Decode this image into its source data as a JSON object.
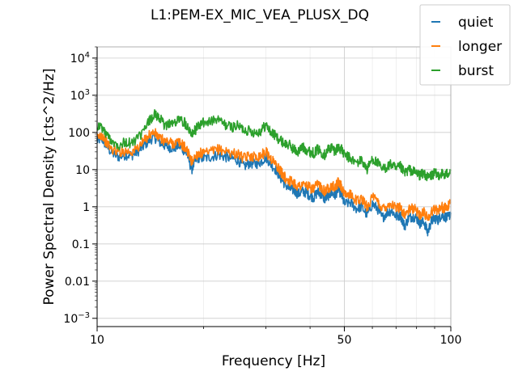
{
  "chart_data": {
    "type": "line",
    "title": "L1:PEM-EX_MIC_VEA_PLUSX_DQ",
    "xlabel": "Frequency [Hz]",
    "ylabel": "Power Spectral Density [cts^2/Hz]",
    "xscale": "log",
    "yscale": "log",
    "xlim": [
      10,
      100
    ],
    "ylim": [
      0.0006,
      20000
    ],
    "x_ticks": [
      {
        "value": 10,
        "label": "10"
      },
      {
        "value": 50,
        "label": "50"
      },
      {
        "value": 100,
        "label": "100"
      }
    ],
    "y_ticks": [
      {
        "value": 0.001,
        "base": "10",
        "exp": "−3"
      },
      {
        "value": 0.01,
        "label": "0.01"
      },
      {
        "value": 0.1,
        "label": "0.1"
      },
      {
        "value": 1,
        "label": "1"
      },
      {
        "value": 10,
        "label": "10"
      },
      {
        "value": 100,
        "label": "100"
      },
      {
        "value": 1000,
        "base": "10",
        "exp": "3"
      },
      {
        "value": 10000,
        "base": "10",
        "exp": "4"
      }
    ],
    "grid": true,
    "legend_position": "top-right",
    "x": [
      10,
      10.3,
      10.6,
      11,
      11.5,
      12,
      12.5,
      13,
      13.5,
      14,
      14.5,
      15,
      15.5,
      16,
      16.5,
      17,
      17.5,
      18,
      18.5,
      19,
      19.5,
      20,
      21,
      22,
      23,
      24,
      25,
      26,
      27,
      28,
      29,
      30,
      31,
      32,
      33,
      34,
      35,
      36,
      37,
      38,
      39,
      40,
      41,
      42,
      43,
      44,
      45,
      46,
      47,
      48,
      49,
      50,
      52,
      54,
      56,
      58,
      60,
      62,
      64,
      66,
      68,
      70,
      72,
      74,
      76,
      78,
      80,
      82,
      84,
      86,
      88,
      90,
      92,
      94,
      96,
      98,
      100
    ],
    "series": [
      {
        "name": "quiet",
        "color": "#1f77b4",
        "values": [
          60,
          70,
          45,
          28,
          22,
          25,
          24,
          30,
          42,
          60,
          75,
          55,
          45,
          40,
          38,
          45,
          35,
          25,
          10,
          18,
          22,
          20,
          22,
          25,
          22,
          20,
          18,
          12,
          15,
          14,
          16,
          22,
          14,
          10,
          6,
          4,
          3,
          2.8,
          2.2,
          2.6,
          2.4,
          2,
          1.8,
          2.5,
          2.2,
          1.6,
          2,
          2.4,
          2,
          3,
          2.2,
          1.2,
          1.3,
          0.9,
          1,
          0.6,
          1.2,
          0.9,
          0.5,
          0.7,
          0.8,
          0.55,
          0.6,
          0.3,
          0.5,
          0.55,
          0.5,
          0.35,
          0.4,
          0.2,
          0.4,
          0.5,
          0.45,
          0.6,
          0.55,
          0.5,
          0.7
        ]
      },
      {
        "name": "longer",
        "color": "#ff7f0e",
        "values": [
          70,
          90,
          55,
          35,
          30,
          32,
          30,
          38,
          55,
          85,
          100,
          70,
          60,
          55,
          50,
          55,
          45,
          32,
          16,
          24,
          28,
          26,
          30,
          35,
          32,
          28,
          26,
          20,
          24,
          22,
          24,
          30,
          20,
          14,
          9,
          6,
          5,
          4.5,
          3.5,
          4,
          3.8,
          3.2,
          3,
          4,
          3.5,
          2.6,
          3.2,
          3.8,
          3.2,
          4.5,
          3.5,
          2,
          2.2,
          1.5,
          1.6,
          1,
          1.8,
          1.4,
          0.9,
          1.1,
          1.2,
          0.9,
          1,
          0.6,
          0.8,
          0.9,
          0.8,
          0.6,
          0.7,
          0.5,
          0.7,
          0.9,
          0.8,
          1,
          0.9,
          1,
          1.3
        ]
      },
      {
        "name": "burst",
        "color": "#2ca02c",
        "values": [
          150,
          140,
          90,
          60,
          45,
          55,
          50,
          70,
          100,
          200,
          300,
          250,
          150,
          180,
          170,
          220,
          200,
          150,
          100,
          120,
          160,
          180,
          200,
          220,
          160,
          140,
          150,
          120,
          110,
          100,
          110,
          160,
          100,
          80,
          60,
          50,
          45,
          35,
          30,
          40,
          35,
          30,
          28,
          35,
          30,
          25,
          35,
          40,
          32,
          40,
          35,
          25,
          20,
          15,
          18,
          10,
          20,
          15,
          10,
          12,
          14,
          10,
          12,
          8,
          10,
          9,
          8,
          7,
          8,
          6,
          7,
          8,
          7,
          8,
          7,
          8,
          10
        ]
      }
    ]
  }
}
